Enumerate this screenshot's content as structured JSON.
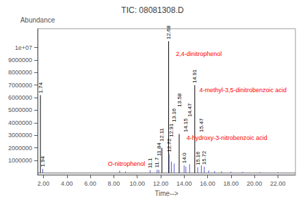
{
  "chart_data": {
    "type": "stem",
    "title": "TIC: 08081308.D",
    "xlabel": "Time-->",
    "ylabel": "Abundance",
    "x": [
      1.74,
      1.94,
      8.5,
      9.0,
      11.1,
      11.7,
      11.84,
      12.11,
      12.68,
      12.72,
      12.91,
      13.16,
      13.58,
      14.0,
      14.15,
      14.47,
      14.91,
      15.16,
      15.47,
      15.72,
      16.1,
      16.6,
      17.2,
      18.0,
      19.0,
      20.5,
      22.0
    ],
    "values": [
      6200000,
      320000,
      180000,
      100000,
      220000,
      260000,
      240000,
      2000000,
      10500000.0,
      1500000,
      900000,
      750000,
      3100000,
      600000,
      500000,
      700000,
      7000000,
      450000,
      600000,
      500000,
      200000,
      150000,
      120000,
      100000,
      80000,
      60000,
      50000
    ],
    "colors": [
      "black",
      "#5555cc",
      "#5555cc",
      "#5555cc",
      "#5555cc",
      "#5555cc",
      "#5555cc",
      "black",
      "black",
      "#5555cc",
      "#5555cc",
      "#5555cc",
      "black",
      "#5555cc",
      "#5555cc",
      "#5555cc",
      "black",
      "#5555cc",
      "#5555cc",
      "#5555cc",
      "#5555cc",
      "#5555cc",
      "#5555cc",
      "#5555cc",
      "#5555cc",
      "#5555cc",
      "#5555cc"
    ],
    "labels": [
      "1.74",
      "1.94",
      null,
      null,
      "11.1",
      "11.7",
      "11.84",
      "12.11",
      "12.68",
      "12.72",
      "12.91",
      "13.16",
      "13.58",
      "14.0",
      "14.15",
      "14.47",
      "14.91",
      "15.16",
      "15.47",
      "15.72",
      null,
      null,
      null,
      null,
      null,
      null,
      null
    ],
    "annotations": [
      {
        "text": "2,4-dinitrophenol",
        "x": 13.3,
        "y": 9500000.0,
        "color": "red"
      },
      {
        "text": "4-methyl-3,5-dinitrobenzoic acid",
        "x": 15.3,
        "y": 6600000,
        "color": "red"
      },
      {
        "text": "4-hydroxy-3-nitrobenzoic acid",
        "x": 14.2,
        "y": 2800000,
        "color": "red"
      },
      {
        "text": "O-nitrophenol",
        "x": 7.5,
        "y": 750000,
        "color": "red"
      }
    ],
    "xlim": [
      1.5,
      23.5
    ],
    "ylim": [
      -150000.0,
      11500000.0
    ],
    "xticks": [
      {
        "value": 2,
        "label": "2.00"
      },
      {
        "value": 4,
        "label": "4.00"
      },
      {
        "value": 6,
        "label": "6.00"
      },
      {
        "value": 8,
        "label": "8.00"
      },
      {
        "value": 10,
        "label": "10.00"
      },
      {
        "value": 12,
        "label": "12.00"
      },
      {
        "value": 14,
        "label": "14.00"
      },
      {
        "value": 16,
        "label": "16.00"
      },
      {
        "value": 18,
        "label": "18.00"
      },
      {
        "value": 20,
        "label": "20.00"
      },
      {
        "value": 22,
        "label": "22.00"
      }
    ],
    "yticks": [
      1000000,
      2000000,
      3000000,
      4000000,
      5000000,
      6000000,
      7000000,
      8000000,
      9000000,
      {
        "value": 10000000.0,
        "label": "1e+07"
      }
    ],
    "grid": false
  }
}
